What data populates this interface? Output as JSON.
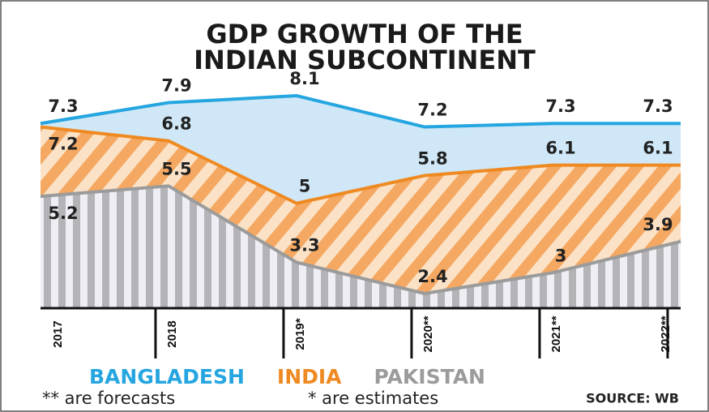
{
  "chart_data": {
    "type": "line",
    "title": [
      "GDP GROWTH OF THE",
      "INDIAN SUBCONTINENT"
    ],
    "categories": [
      "2017",
      "2018",
      "2019*",
      "2020**",
      "2021**",
      "2022**"
    ],
    "series": [
      {
        "name": "BANGLADESH",
        "color": "#25a6e0",
        "values": [
          7.3,
          7.9,
          8.1,
          7.2,
          7.3,
          7.3
        ]
      },
      {
        "name": "INDIA",
        "color": "#ef8a22",
        "values": [
          7.2,
          6.8,
          5,
          5.8,
          6.1,
          6.1
        ]
      },
      {
        "name": "PAKISTAN",
        "color": "#9b9b9b",
        "values": [
          5.2,
          5.5,
          3.3,
          2.4,
          3,
          3.9
        ]
      }
    ],
    "notes": [
      "** are forecasts",
      "* are estimates"
    ],
    "source": "SOURCE: WB"
  }
}
